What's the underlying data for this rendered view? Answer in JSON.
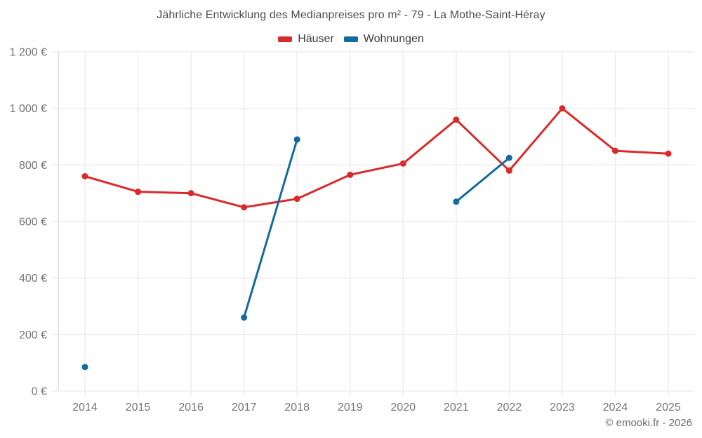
{
  "page": {
    "copyright": "© emooki.fr - 2026"
  },
  "chart_data": {
    "type": "line",
    "title": "Jährliche Entwicklung des Medianpreises pro m² - 79 - La Mothe-Saint-Héray",
    "categories": [
      2014,
      2015,
      2016,
      2017,
      2018,
      2019,
      2020,
      2021,
      2022,
      2023,
      2024,
      2025
    ],
    "series": [
      {
        "name": "Häuser",
        "color": "#d92b2b",
        "values": [
          760,
          705,
          700,
          650,
          680,
          765,
          805,
          960,
          780,
          1000,
          850,
          840
        ]
      },
      {
        "name": "Wohnungen",
        "color": "#136a9e",
        "values": [
          85,
          null,
          null,
          260,
          890,
          null,
          null,
          670,
          825,
          null,
          null,
          null
        ]
      }
    ],
    "xlabel": "",
    "ylabel": "",
    "ylim": [
      0,
      1200
    ],
    "ytick_step": 200,
    "ytick_labels": [
      "0 €",
      "200 €",
      "400 €",
      "600 €",
      "800 €",
      "1 000 €",
      "1 200 €"
    ],
    "grid": true,
    "legend_position": "top",
    "colors": {
      "grid": "#ededed",
      "axis": "#dedede",
      "tick_label": "#757575"
    }
  }
}
